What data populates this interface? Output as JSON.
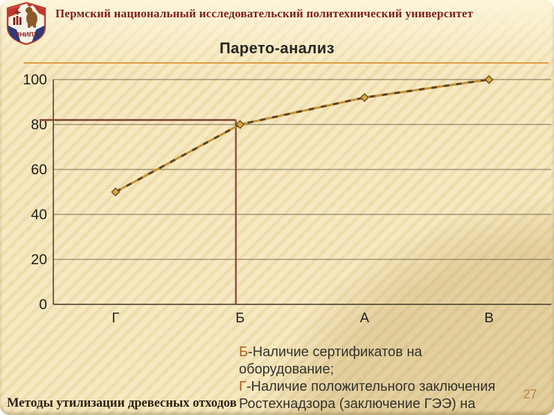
{
  "slide": {
    "header": "Пермский национальный исследовательский политехнический университет",
    "title": "Парето-анализ",
    "footer": "Методы утилизации древесных отходов",
    "page_number": "27",
    "logo_text": "ПНИПУ"
  },
  "annotations": {
    "items": [
      {
        "letter": "Б",
        "text": "-Наличие сертификатов на оборудование;"
      },
      {
        "letter": "Г",
        "text": "-Наличие положительного заключения Ростехнадзора (заключение ГЭЭ) на"
      }
    ]
  },
  "chart_data": {
    "type": "line",
    "title": "Парето-анализ",
    "categories": [
      "Г",
      "Б",
      "А",
      "В"
    ],
    "values": [
      50,
      80,
      92,
      100
    ],
    "xlabel": "",
    "ylabel": "",
    "ylim": [
      0,
      100
    ],
    "yticks": [
      0,
      20,
      40,
      60,
      80,
      100
    ],
    "grid": true,
    "legend": false,
    "reference_lines": {
      "horizontal_value": 82,
      "vertical_at_category": "Б"
    },
    "colors": {
      "line": "#c49432",
      "line_dash": "#5f4426",
      "marker": "#d8a93c",
      "marker_edge": "#6a4d1f",
      "reference": "#8d5546",
      "grid": "#6e6a50",
      "axis": "#4f4a38",
      "tick_text": "#1f1f1c"
    }
  }
}
